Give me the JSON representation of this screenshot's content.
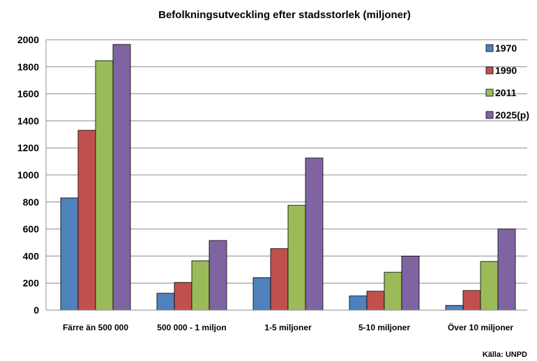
{
  "chart_data": {
    "type": "bar",
    "title": "Befolkningsutveckling efter stadsstorlek (miljoner)",
    "categories": [
      "Färre än 500 000",
      "500 000 - 1 miljon",
      "1-5 miljoner",
      "5-10 miljoner",
      "Över 10 miljoner"
    ],
    "series": [
      {
        "name": "1970",
        "color": "#4F81BD",
        "values": [
          830,
          125,
          240,
          105,
          35
        ]
      },
      {
        "name": "1990",
        "color": "#C0504D",
        "values": [
          1330,
          205,
          455,
          140,
          145
        ]
      },
      {
        "name": "2011",
        "color": "#9BBB59",
        "values": [
          1845,
          365,
          775,
          280,
          360
        ]
      },
      {
        "name": "2025(p)",
        "color": "#8064A2",
        "values": [
          1965,
          515,
          1125,
          400,
          600
        ]
      }
    ],
    "ylim": [
      0,
      2000
    ],
    "yticks": [
      0,
      200,
      400,
      600,
      800,
      1000,
      1200,
      1400,
      1600,
      1800,
      2000
    ],
    "grid": true,
    "legend_position": "right",
    "source": "Källa: UNPD"
  }
}
